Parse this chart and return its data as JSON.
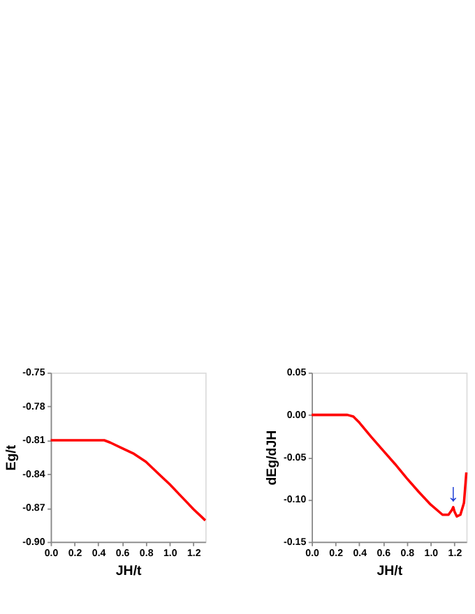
{
  "chart_data": [
    {
      "type": "line",
      "xlabel": "JH/t",
      "ylabel": "Eg/t",
      "xlim": [
        0,
        1.3
      ],
      "xticks": [
        {
          "value": 0,
          "label": "0.0"
        },
        {
          "value": 0.2,
          "label": "0.2"
        },
        {
          "value": 0.4,
          "label": "0.4"
        },
        {
          "value": 0.6,
          "label": "0.6"
        },
        {
          "value": 0.8,
          "label": "0.8"
        },
        {
          "value": 1,
          "label": "1.0"
        },
        {
          "value": 1.2,
          "label": "1.2"
        }
      ],
      "ylim": [
        -0.9,
        -0.75
      ],
      "yticks": [
        {
          "value": -0.9,
          "label": "-0.90"
        },
        {
          "value": -0.87,
          "label": "-0.87"
        },
        {
          "value": -0.84,
          "label": "-0.84"
        },
        {
          "value": -0.81,
          "label": "-0.81"
        },
        {
          "value": -0.78,
          "label": "-0.78"
        },
        {
          "value": -0.75,
          "label": "-0.75"
        }
      ],
      "grid": false,
      "marker": "none",
      "line_style": "solid",
      "series": [
        {
          "color": "#ff0000",
          "x": [
            0,
            0.1,
            0.2,
            0.3,
            0.4,
            0.45,
            0.5,
            0.6,
            0.7,
            0.8,
            0.9,
            1.0,
            1.1,
            1.2,
            1.3
          ],
          "values": [
            -0.81,
            -0.81,
            -0.81,
            -0.81,
            -0.81,
            -0.81,
            -0.812,
            -0.817,
            -0.822,
            -0.829,
            -0.839,
            -0.849,
            -0.86,
            -0.871,
            -0.881
          ]
        }
      ]
    },
    {
      "type": "line",
      "xlabel": "JH/t",
      "ylabel": "dEg/dJH",
      "xlim": [
        0,
        1.3
      ],
      "xticks": [
        {
          "value": 0,
          "label": "0.0"
        },
        {
          "value": 0.2,
          "label": "0.2"
        },
        {
          "value": 0.4,
          "label": "0.4"
        },
        {
          "value": 0.6,
          "label": "0.6"
        },
        {
          "value": 0.8,
          "label": "0.8"
        },
        {
          "value": 1,
          "label": "1.0"
        },
        {
          "value": 1.2,
          "label": "1.2"
        }
      ],
      "ylim": [
        -0.15,
        0.05
      ],
      "yticks": [
        {
          "value": -0.15,
          "label": "-0.15"
        },
        {
          "value": -0.1,
          "label": "-0.10"
        },
        {
          "value": -0.05,
          "label": "-0.05"
        },
        {
          "value": 0,
          "label": "0.00"
        },
        {
          "value": 0.05,
          "label": "0.05"
        }
      ],
      "grid": false,
      "marker": "none",
      "line_style": "solid",
      "annotations": [
        {
          "text": "↓",
          "x": 1.19,
          "y": -0.109
        }
      ],
      "series": [
        {
          "color": "#ff0000",
          "x": [
            0,
            0.1,
            0.2,
            0.3,
            0.35,
            0.4,
            0.5,
            0.6,
            0.7,
            0.8,
            0.9,
            1.0,
            1.1,
            1.15,
            1.18,
            1.19,
            1.2,
            1.22,
            1.25,
            1.28,
            1.3
          ],
          "values": [
            0,
            0,
            0,
            0,
            -0.002,
            -0.009,
            -0.026,
            -0.042,
            -0.058,
            -0.075,
            -0.091,
            -0.106,
            -0.118,
            -0.118,
            -0.112,
            -0.109,
            -0.114,
            -0.12,
            -0.118,
            -0.104,
            -0.068
          ]
        }
      ]
    }
  ]
}
